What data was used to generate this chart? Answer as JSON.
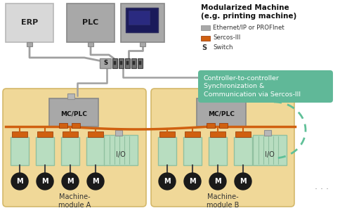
{
  "bg_color": "#ffffff",
  "tan_color": "#f0d898",
  "tan_border": "#d4b86a",
  "gray_light": "#d8d8d8",
  "gray_med": "#a8a8a8",
  "gray_dark": "#787878",
  "green_module": "#b8ddc0",
  "green_module_border": "#90c0a0",
  "orange_line": "#d06010",
  "gray_line": "#a0a0a0",
  "teal_box": "#60b898",
  "teal_dash": "#60c098",
  "black_motor": "#1a1a1a",
  "dark_blue_screen": "#1a1a5a",
  "switch_gray": "#707070",
  "switch_port": "#404040",
  "title_line1": "Modularized Machine",
  "title_line2": "(e.g. printing machine)",
  "leg1_label": "Ethernet/IP or PROFInet",
  "leg2_label": "Sercos-III",
  "leg3_label": "Switch",
  "callout_text": "Controller-to-controller\nSynchronization &\nCommunication via Sercos-III",
  "module_a_label": "Machine-\nmodule A",
  "module_b_label": "Machine-\nmodule B",
  "mcplc_label": "MC/PLC",
  "io_label": "I/O",
  "erp_label": "ERP",
  "plc_label": "PLC"
}
